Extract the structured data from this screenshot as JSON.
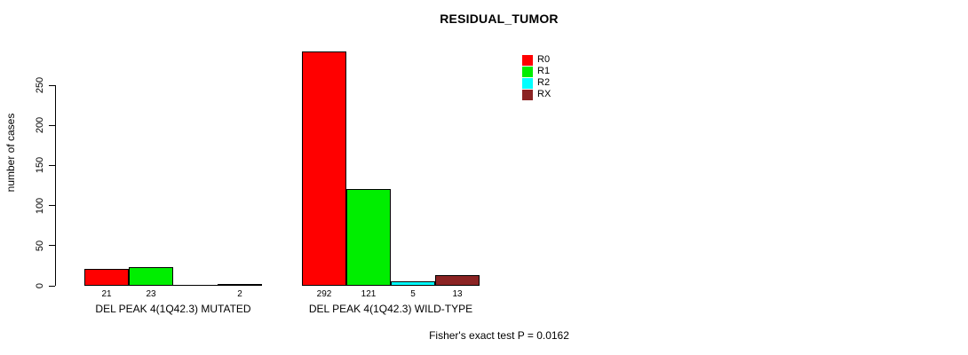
{
  "chart_data": {
    "type": "bar",
    "title": "RESIDUAL_TUMOR",
    "ylabel": "number of cases",
    "xlabel": "",
    "categories": [
      "DEL PEAK 4(1Q42.3) MUTATED",
      "DEL PEAK 4(1Q42.3) WILD-TYPE"
    ],
    "series": [
      {
        "name": "R0",
        "color": "#FF0000",
        "values": [
          21,
          292
        ]
      },
      {
        "name": "R1",
        "color": "#00EE00",
        "values": [
          23,
          121
        ]
      },
      {
        "name": "R2",
        "color": "#00FFFF",
        "values": [
          0,
          5
        ]
      },
      {
        "name": "RX",
        "color": "#8B2323",
        "values": [
          2,
          13
        ]
      }
    ],
    "bar_value_labels": {
      "shown": true,
      "hidden_when_zero": true
    },
    "yticks": [
      0,
      50,
      100,
      150,
      200,
      250
    ],
    "ylim": [
      0,
      295
    ],
    "grid": "off",
    "legend_position": "top-right",
    "annotation": "Fisher's exact test P = 0.0162"
  }
}
